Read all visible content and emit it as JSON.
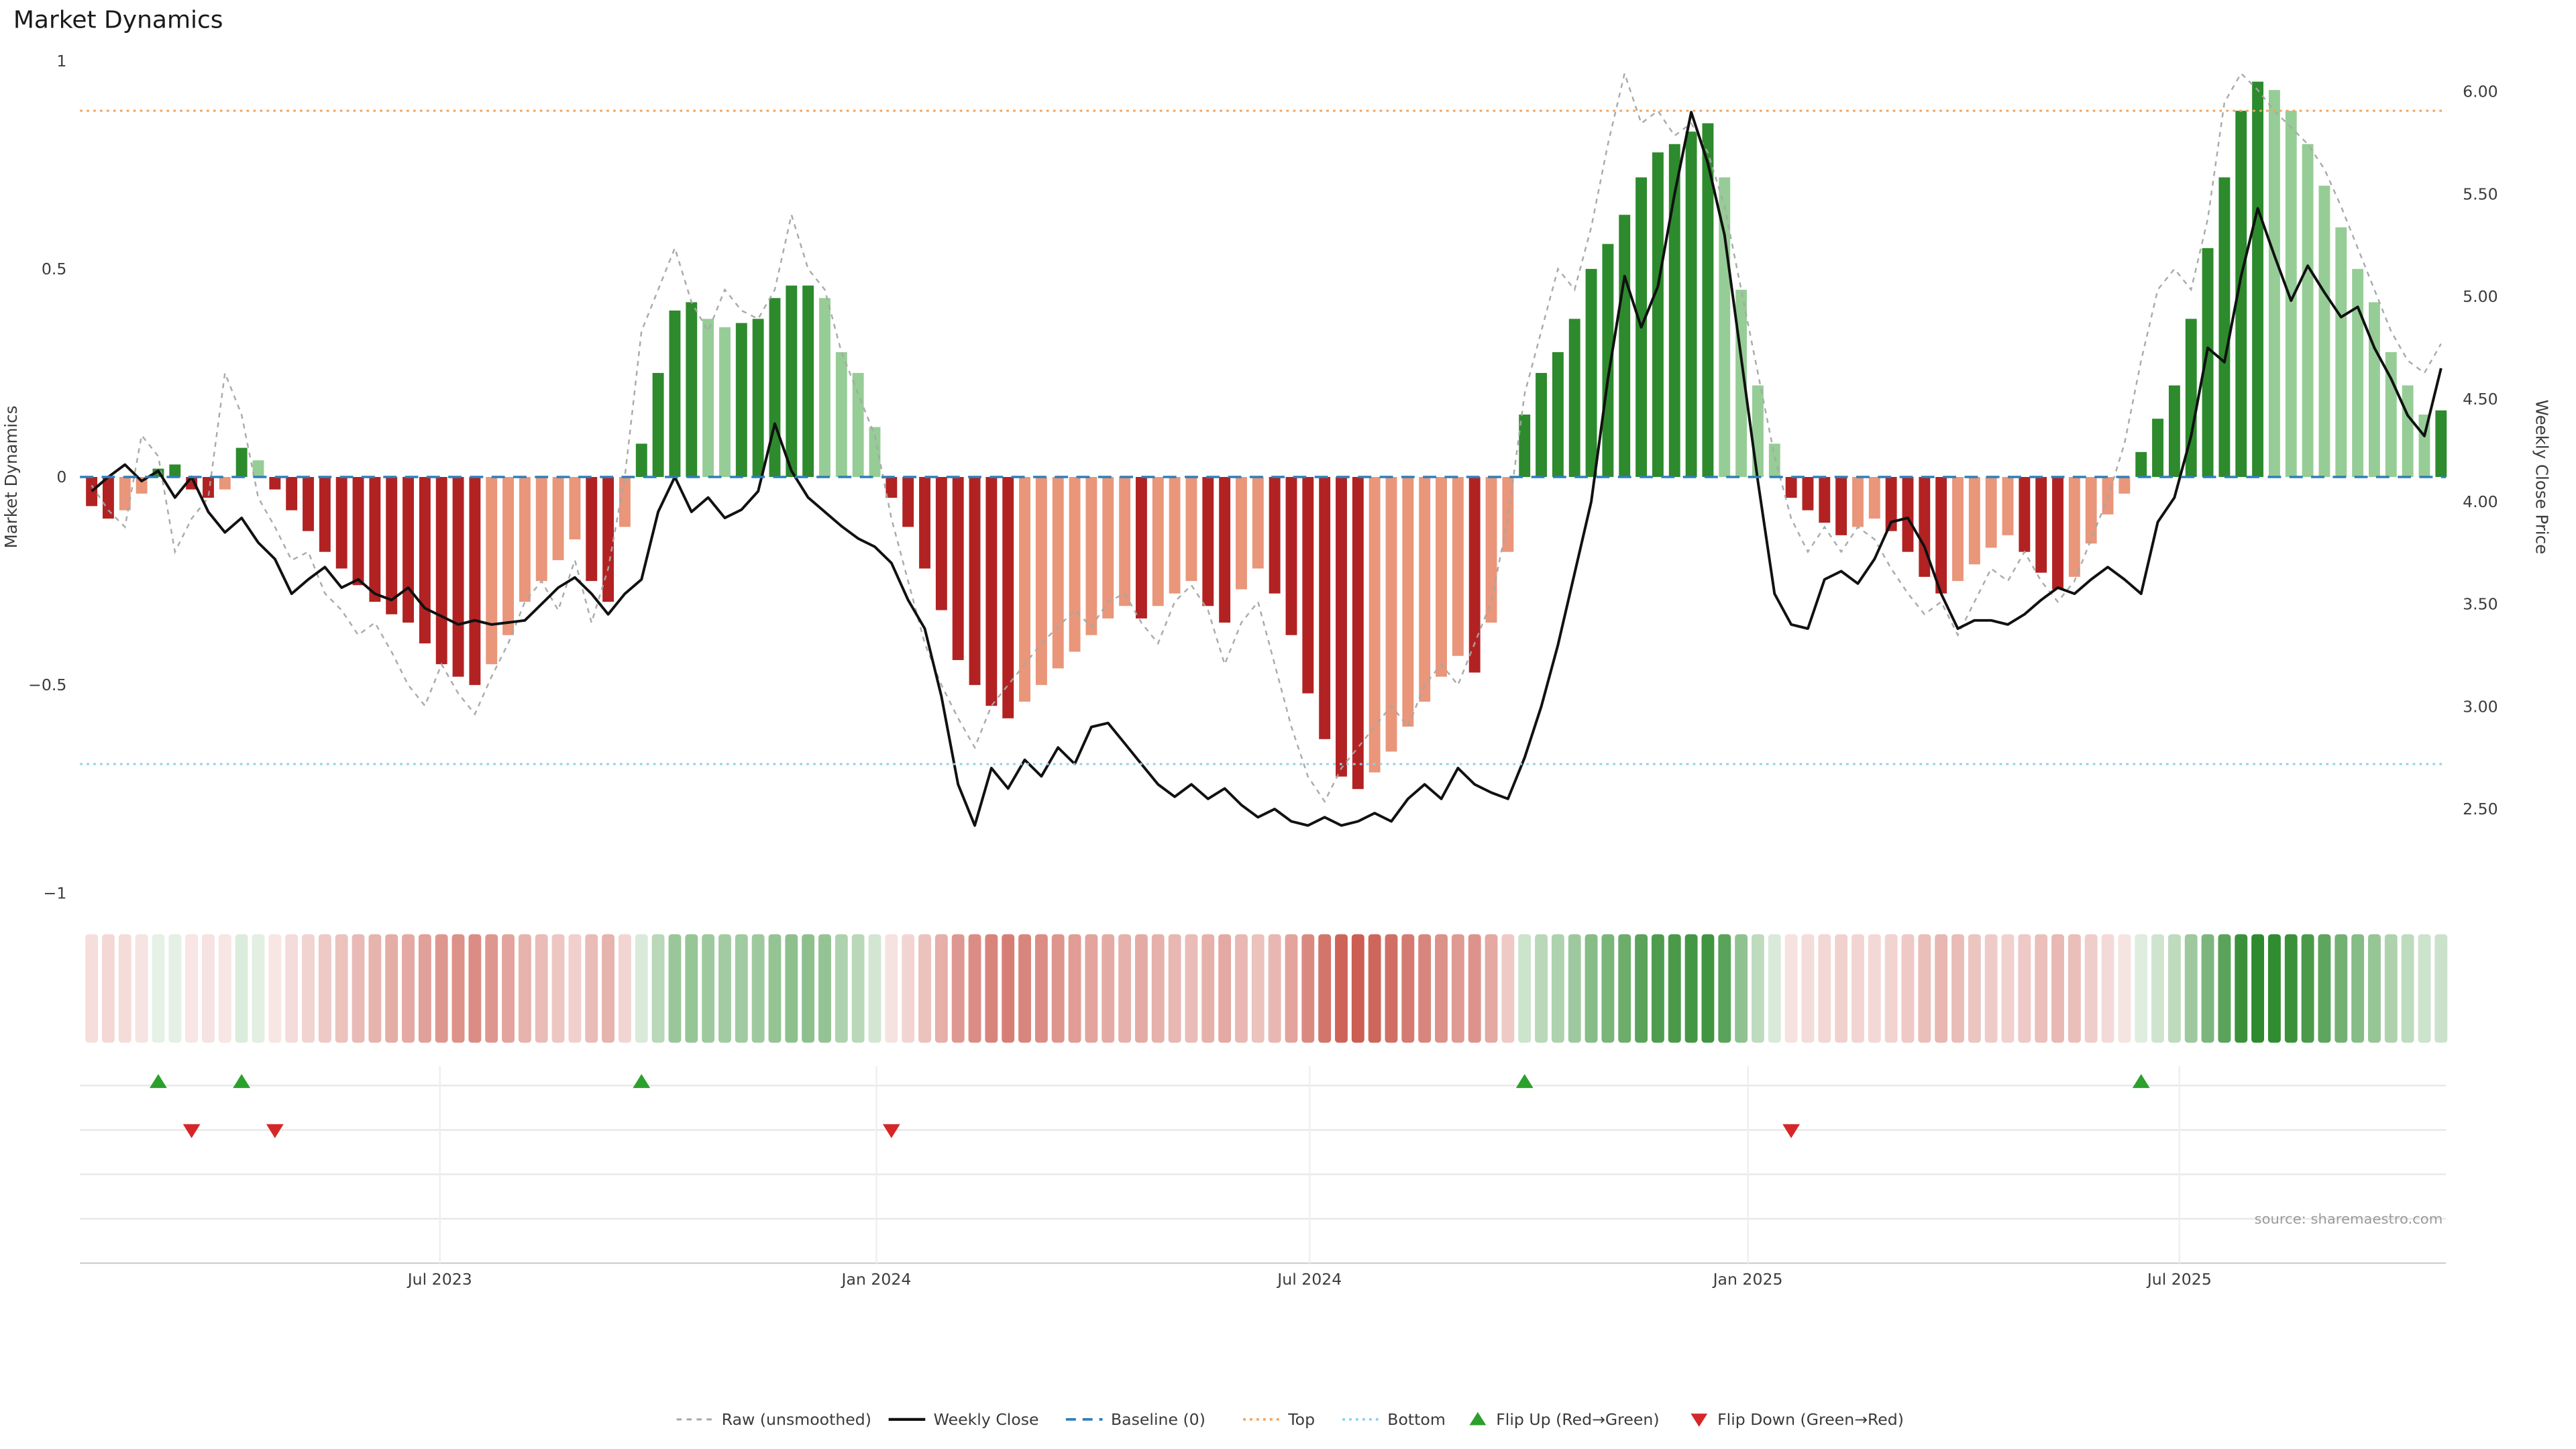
{
  "title": "Market Dynamics",
  "source_note": "source: sharemaestro.com",
  "colors": {
    "bar_up_strong": "#2d8a2d",
    "bar_up_weak": "#96cd96",
    "bar_down_strong": "#b22222",
    "bar_down_weak": "#e9967a",
    "weekly_close": "#111111",
    "raw_line": "#a6a6a6",
    "baseline": "#2f7fb8",
    "top_line": "#f2a55e",
    "bottom_line": "#8ed0ec",
    "flip_up": "#2ca02c",
    "flip_down": "#d62728",
    "heat_up": "#2d8a2d",
    "heat_down": "#c0392b",
    "grid": "#e8e8e8",
    "axis_text": "#3c3c3c"
  },
  "legend": [
    {
      "label": "Raw (unsmoothed)",
      "swatch": "raw"
    },
    {
      "label": "Weekly Close",
      "swatch": "close"
    },
    {
      "label": "Baseline (0)",
      "swatch": "baseline"
    },
    {
      "label": "Top",
      "swatch": "top"
    },
    {
      "label": "Bottom",
      "swatch": "bottom"
    },
    {
      "label": "Flip Up (Red→Green)",
      "swatch": "flip_up"
    },
    {
      "label": "Flip Down (Green→Red)",
      "swatch": "flip_down"
    }
  ],
  "chart_data": {
    "type": "bar",
    "title": "Market Dynamics",
    "x": {
      "unit": "week",
      "count": 142,
      "ticks": [
        {
          "week": 20.9,
          "label": "Jul 2023"
        },
        {
          "week": 47.1,
          "label": "Jan 2024"
        },
        {
          "week": 73.1,
          "label": "Jul 2024"
        },
        {
          "week": 99.4,
          "label": "Jan 2025"
        },
        {
          "week": 125.3,
          "label": "Jul 2025"
        }
      ]
    },
    "left_axis": {
      "label": "Market Dynamics",
      "min": -1.0,
      "max": 1.0,
      "ticks": [
        {
          "v": 1,
          "label": "1"
        },
        {
          "v": 0.5,
          "label": "0.5"
        },
        {
          "v": 0,
          "label": "0"
        },
        {
          "v": -0.5,
          "label": "−0.5"
        },
        {
          "v": -1,
          "label": "−1"
        }
      ]
    },
    "right_axis": {
      "label": "Weekly Close Price",
      "min": 2.09,
      "max": 6.15,
      "ticks": [
        {
          "v": 6.0,
          "label": "6.00"
        },
        {
          "v": 5.5,
          "label": "5.50"
        },
        {
          "v": 5.0,
          "label": "5.00"
        },
        {
          "v": 4.5,
          "label": "4.50"
        },
        {
          "v": 4.0,
          "label": "4.00"
        },
        {
          "v": 3.5,
          "label": "3.50"
        },
        {
          "v": 3.0,
          "label": "3.00"
        },
        {
          "v": 2.5,
          "label": "2.50"
        }
      ]
    },
    "reference_lines": {
      "baseline": 0,
      "top": 0.88,
      "bottom": -0.69
    },
    "flip_up_weeks": [
      4,
      9,
      33,
      86,
      123
    ],
    "flip_down_weeks": [
      6,
      11,
      48,
      102
    ],
    "series": [
      {
        "name": "Market Dynamics",
        "type": "bar",
        "axis": "left",
        "values": [
          -0.07,
          -0.1,
          -0.08,
          -0.04,
          0.02,
          0.03,
          -0.03,
          -0.05,
          -0.03,
          0.07,
          0.04,
          -0.03,
          -0.08,
          -0.13,
          -0.18,
          -0.22,
          -0.26,
          -0.3,
          -0.33,
          -0.35,
          -0.4,
          -0.45,
          -0.48,
          -0.5,
          -0.45,
          -0.38,
          -0.3,
          -0.25,
          -0.2,
          -0.15,
          -0.25,
          -0.3,
          -0.12,
          0.08,
          0.25,
          0.4,
          0.42,
          0.38,
          0.36,
          0.37,
          0.38,
          0.43,
          0.46,
          0.46,
          0.43,
          0.3,
          0.25,
          0.12,
          -0.05,
          -0.12,
          -0.22,
          -0.32,
          -0.44,
          -0.5,
          -0.55,
          -0.58,
          -0.54,
          -0.5,
          -0.46,
          -0.42,
          -0.38,
          -0.34,
          -0.31,
          -0.34,
          -0.31,
          -0.28,
          -0.25,
          -0.31,
          -0.35,
          -0.27,
          -0.22,
          -0.28,
          -0.38,
          -0.52,
          -0.63,
          -0.72,
          -0.75,
          -0.71,
          -0.66,
          -0.6,
          -0.54,
          -0.48,
          -0.43,
          -0.47,
          -0.35,
          -0.18,
          0.15,
          0.25,
          0.3,
          0.38,
          0.5,
          0.56,
          0.63,
          0.72,
          0.78,
          0.8,
          0.83,
          0.85,
          0.72,
          0.45,
          0.22,
          0.08,
          -0.05,
          -0.08,
          -0.11,
          -0.14,
          -0.12,
          -0.1,
          -0.13,
          -0.18,
          -0.24,
          -0.28,
          -0.25,
          -0.21,
          -0.17,
          -0.14,
          -0.18,
          -0.23,
          -0.27,
          -0.24,
          -0.16,
          -0.09,
          -0.04,
          0.06,
          0.14,
          0.22,
          0.38,
          0.55,
          0.72,
          0.88,
          0.95,
          0.93,
          0.88,
          0.8,
          0.7,
          0.6,
          0.5,
          0.42,
          0.3,
          0.22,
          0.15,
          0.16
        ]
      },
      {
        "name": "Raw (unsmoothed)",
        "type": "line",
        "style": "dashed",
        "axis": "left",
        "values": [
          -0.02,
          -0.08,
          -0.12,
          0.1,
          0.05,
          -0.18,
          -0.1,
          -0.05,
          0.25,
          0.15,
          -0.05,
          -0.12,
          -0.2,
          -0.18,
          -0.28,
          -0.32,
          -0.38,
          -0.35,
          -0.42,
          -0.5,
          -0.55,
          -0.45,
          -0.52,
          -0.57,
          -0.48,
          -0.4,
          -0.3,
          -0.25,
          -0.32,
          -0.2,
          -0.35,
          -0.22,
          0,
          0.35,
          0.45,
          0.55,
          0.42,
          0.35,
          0.45,
          0.4,
          0.38,
          0.45,
          0.63,
          0.5,
          0.45,
          0.3,
          0.2,
          0.1,
          -0.1,
          -0.25,
          -0.4,
          -0.5,
          -0.58,
          -0.65,
          -0.55,
          -0.5,
          -0.45,
          -0.4,
          -0.36,
          -0.32,
          -0.36,
          -0.3,
          -0.28,
          -0.35,
          -0.4,
          -0.3,
          -0.26,
          -0.32,
          -0.45,
          -0.35,
          -0.3,
          -0.45,
          -0.6,
          -0.72,
          -0.78,
          -0.7,
          -0.65,
          -0.6,
          -0.55,
          -0.6,
          -0.5,
          -0.45,
          -0.5,
          -0.4,
          -0.3,
          -0.1,
          0.2,
          0.35,
          0.5,
          0.45,
          0.6,
          0.8,
          0.97,
          0.85,
          0.88,
          0.82,
          0.85,
          0.78,
          0.65,
          0.45,
          0.25,
          0.05,
          -0.1,
          -0.18,
          -0.12,
          -0.18,
          -0.12,
          -0.15,
          -0.22,
          -0.28,
          -0.33,
          -0.3,
          -0.38,
          -0.3,
          -0.22,
          -0.25,
          -0.18,
          -0.25,
          -0.3,
          -0.25,
          -0.15,
          -0.05,
          0.08,
          0.28,
          0.45,
          0.5,
          0.45,
          0.62,
          0.9,
          0.97,
          0.93,
          0.88,
          0.84,
          0.8,
          0.74,
          0.65,
          0.55,
          0.45,
          0.35,
          0.28,
          0.25,
          0.32
        ]
      },
      {
        "name": "Weekly Close",
        "type": "line",
        "style": "solid",
        "axis": "right",
        "values": [
          4.05,
          4.12,
          4.18,
          4.1,
          4.15,
          4.02,
          4.12,
          3.95,
          3.85,
          3.92,
          3.8,
          3.72,
          3.55,
          3.62,
          3.68,
          3.58,
          3.62,
          3.55,
          3.52,
          3.58,
          3.48,
          3.44,
          3.4,
          3.42,
          3.4,
          3.41,
          3.42,
          3.5,
          3.58,
          3.63,
          3.55,
          3.45,
          3.55,
          3.62,
          3.95,
          4.12,
          3.95,
          4.02,
          3.92,
          3.96,
          4.05,
          4.38,
          4.15,
          4.02,
          3.95,
          3.88,
          3.82,
          3.78,
          3.7,
          3.52,
          3.38,
          3.05,
          2.62,
          2.42,
          2.7,
          2.6,
          2.74,
          2.66,
          2.8,
          2.72,
          2.9,
          2.92,
          2.82,
          2.72,
          2.62,
          2.56,
          2.62,
          2.55,
          2.6,
          2.52,
          2.46,
          2.5,
          2.44,
          2.42,
          2.46,
          2.42,
          2.44,
          2.48,
          2.44,
          2.55,
          2.62,
          2.55,
          2.7,
          2.62,
          2.58,
          2.55,
          2.75,
          3,
          3.3,
          3.65,
          4,
          4.6,
          5.1,
          4.85,
          5.05,
          5.5,
          5.9,
          5.65,
          5.3,
          4.7,
          4.1,
          3.55,
          3.4,
          3.38,
          3.62,
          3.66,
          3.6,
          3.72,
          3.9,
          3.92,
          3.78,
          3.55,
          3.38,
          3.42,
          3.42,
          3.4,
          3.45,
          3.52,
          3.58,
          3.55,
          3.62,
          3.68,
          3.62,
          3.55,
          3.9,
          4.02,
          4.32,
          4.75,
          4.68,
          5.1,
          5.43,
          5.2,
          4.98,
          5.15,
          5.02,
          4.9,
          4.95,
          4.75,
          4.6,
          4.42,
          4.32,
          4.65
        ]
      }
    ],
    "heatmap_strip": {
      "source_series": "Market Dynamics"
    }
  }
}
